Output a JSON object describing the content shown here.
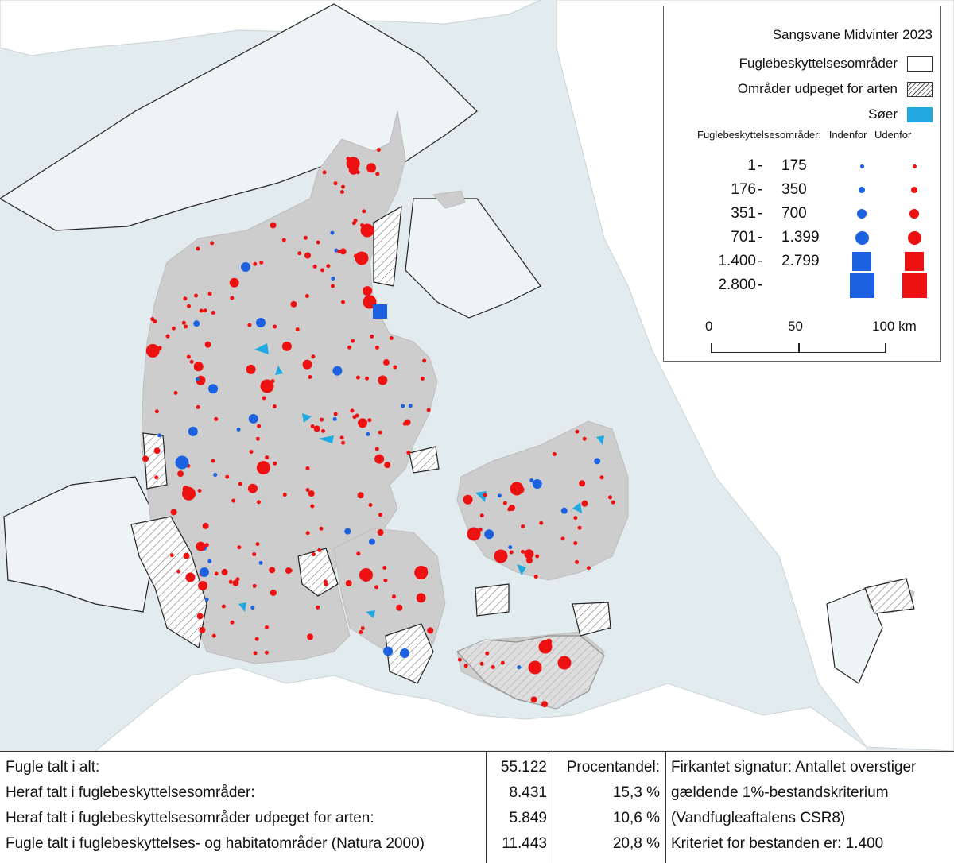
{
  "legend": {
    "title": "Sangsvane Midvinter 2023",
    "items": [
      {
        "label": "Fuglebeskyttelsesområder",
        "swatch": "white"
      },
      {
        "label": "Områder udpeget for arten",
        "swatch": "hatch"
      },
      {
        "label": "Søer",
        "swatch": "lake"
      }
    ],
    "subheading": "Fuglebeskyttelsesområder:",
    "col_inside": "Indenfor",
    "col_outside": "Udenfor",
    "classes": [
      {
        "low": "1",
        "high": "175",
        "shape": "circle",
        "size": 1
      },
      {
        "low": "176",
        "high": "350",
        "shape": "circle",
        "size": 2
      },
      {
        "low": "351",
        "high": "700",
        "shape": "circle",
        "size": 3
      },
      {
        "low": "701",
        "high": "1.399",
        "shape": "circle",
        "size": 4
      },
      {
        "low": "1.400",
        "high": "2.799",
        "shape": "square",
        "size": 5
      },
      {
        "low": "2.800",
        "high": "",
        "shape": "square",
        "size": 6
      }
    ],
    "dash": "-",
    "scale": {
      "labels": [
        "0",
        "50",
        "100 km"
      ]
    }
  },
  "colors": {
    "sea": "#e2ecef",
    "land": "#cdcdcd",
    "lake": "#22a9e0",
    "inside": "#1c62e0",
    "outside": "#ee1111"
  },
  "stats": {
    "rows": [
      {
        "label": "Fugle talt i alt:",
        "value": "55.122",
        "pct": "Procentandel:"
      },
      {
        "label": "Heraf talt i fuglebeskyttelsesområder:",
        "value": "8.431",
        "pct": "15,3 %"
      },
      {
        "label": "Heraf talt i fuglebeskyttelsesområder udpeget for arten:",
        "value": "5.849",
        "pct": "10,6 %"
      },
      {
        "label": "Fugle talt i fuglebeskyttelses- og habitatområder (Natura 2000)",
        "value": "11.443",
        "pct": "20,8 %"
      }
    ],
    "notes": [
      "Firkantet signatur: Antallet overstiger",
      "gældende 1%-bestandskriterium",
      "(Vandfugleaftalens CSR8)",
      "Kriteriet for bestanden er: 1.400"
    ]
  }
}
